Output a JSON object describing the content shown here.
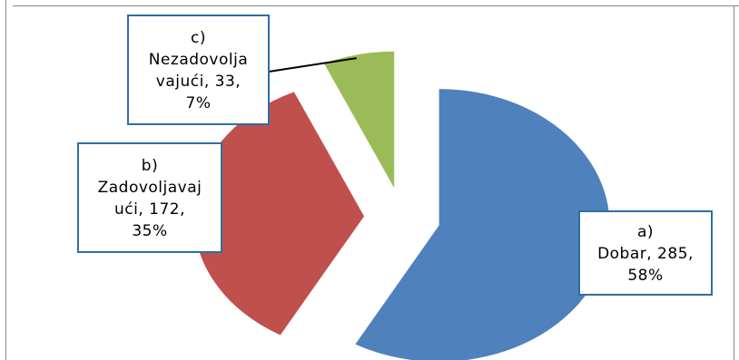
{
  "chart_data": {
    "type": "pie",
    "exploded": true,
    "slices": [
      {
        "id": "a",
        "label_lines": [
          "a)",
          "Dobar, 285,",
          "58%"
        ],
        "category": "a) Dobar",
        "value": 285,
        "percent": 58,
        "color": "#4f81bd"
      },
      {
        "id": "b",
        "label_lines": [
          "b)",
          "Zadovoljavaj",
          "ući, 172,",
          "35%"
        ],
        "category": "b) Zadovoljavajući",
        "value": 172,
        "percent": 35,
        "color": "#c0504d"
      },
      {
        "id": "c",
        "label_lines": [
          "c)",
          "Nezadovolja",
          "vajući, 33,",
          "7%"
        ],
        "category": "c) Nezadovoljavajući",
        "value": 33,
        "percent": 7,
        "color": "#9bbb59"
      }
    ],
    "label_border_color": "#2e6ea6",
    "leader_line_color": "#000000"
  }
}
